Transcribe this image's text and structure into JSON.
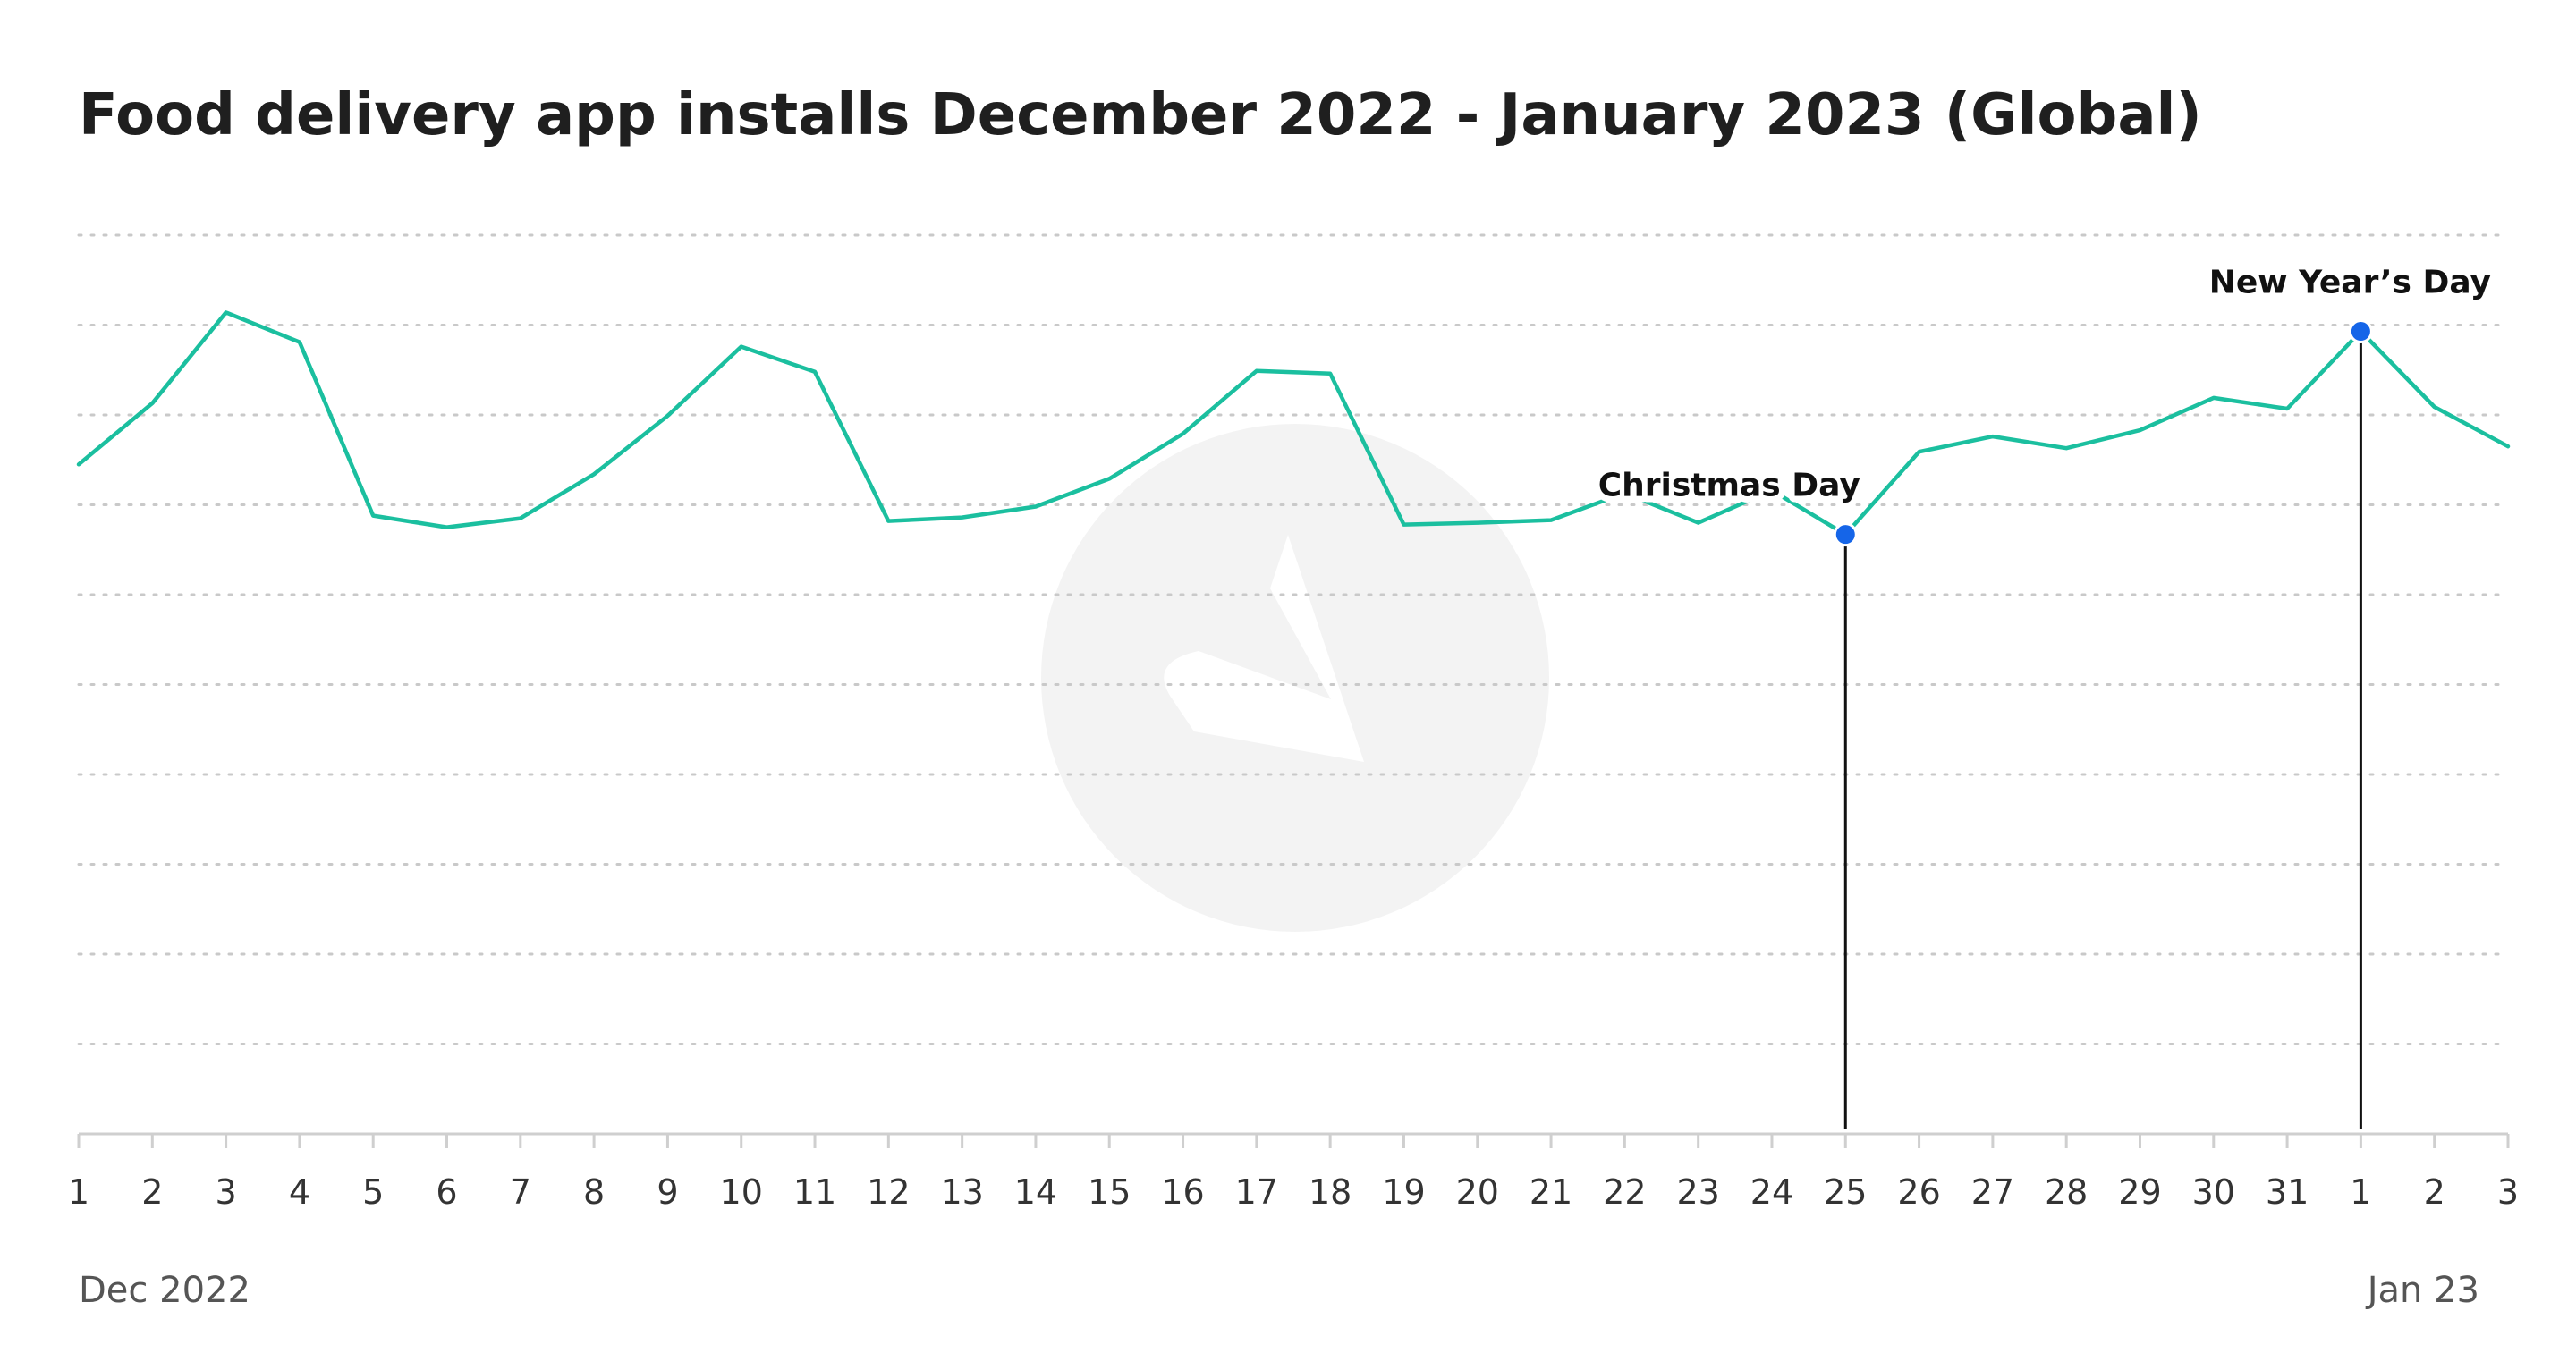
{
  "chart_data": {
    "type": "line",
    "title": "Food delivery app installs December 2022 - January 2023 (Global)",
    "x": [
      "1",
      "2",
      "3",
      "4",
      "5",
      "6",
      "7",
      "8",
      "9",
      "10",
      "11",
      "12",
      "13",
      "14",
      "15",
      "16",
      "17",
      "18",
      "19",
      "20",
      "21",
      "22",
      "23",
      "24",
      "25",
      "26",
      "27",
      "28",
      "29",
      "30",
      "31",
      "1",
      "2",
      "3"
    ],
    "x_period_labels": {
      "start": "Dec 2022",
      "end": "Jan 23"
    },
    "series": [
      {
        "values": [
          74.5,
          81.3,
          91.4,
          88.1,
          68.8,
          67.5,
          68.5,
          73.4,
          79.9,
          87.6,
          84.8,
          68.2,
          68.6,
          69.8,
          72.9,
          77.9,
          84.9,
          84.6,
          67.8,
          68.0,
          68.3,
          71.3,
          68.0,
          71.6,
          66.7,
          75.9,
          77.6,
          76.3,
          78.3,
          81.9,
          80.7,
          89.3,
          80.9,
          76.5
        ],
        "color": "#1bbf9f"
      }
    ],
    "annotations": [
      {
        "index": 24,
        "label": "Christmas Day"
      },
      {
        "index": 31,
        "label": "New Year’s Day"
      }
    ],
    "ylim": [
      0,
      100
    ],
    "grid": true,
    "gridlines": 10,
    "marker_color": "#1565e8",
    "watermark_color": "#f2f2f2"
  }
}
